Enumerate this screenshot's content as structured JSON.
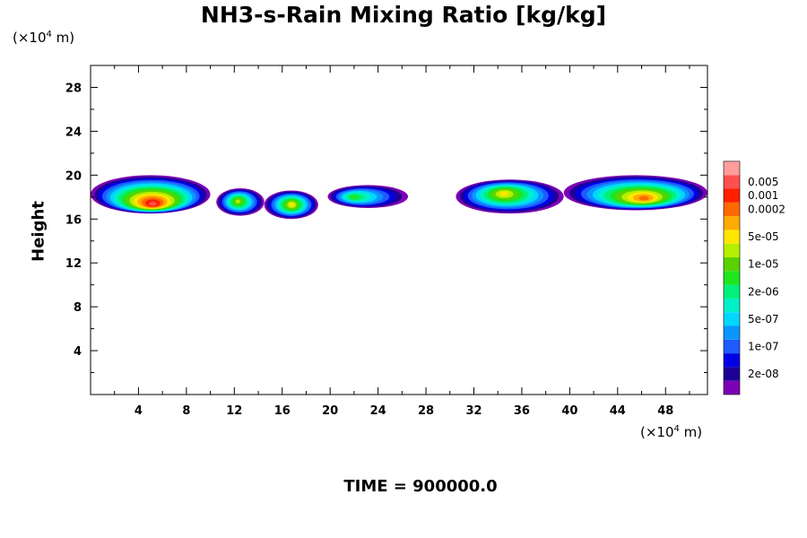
{
  "chart_data": {
    "type": "heatmap",
    "title": "NH3-s-Rain Mixing Ratio [kg/kg]",
    "ylabel": "Height",
    "y_unit": [
      "(×10",
      "4",
      " m)"
    ],
    "x_unit": [
      "(×10",
      "4",
      " m)"
    ],
    "footer": "TIME = 900000.0",
    "xlim": [
      0,
      51.5
    ],
    "ylim": [
      0,
      30
    ],
    "x_ticks": [
      4,
      8,
      12,
      16,
      20,
      24,
      28,
      32,
      36,
      40,
      44,
      48
    ],
    "y_ticks": [
      4,
      8,
      12,
      16,
      20,
      24,
      28
    ],
    "colorbar": {
      "colors": [
        "#7d00b4",
        "#1e0096",
        "#0000e6",
        "#1f5bff",
        "#0b95ff",
        "#00d7ff",
        "#00f0c8",
        "#00f07a",
        "#1ee61e",
        "#5ad200",
        "#b4f000",
        "#ffe600",
        "#ffaa00",
        "#ff6a00",
        "#ff1e00",
        "#ff5050",
        "#ff9c9c"
      ],
      "labels": [
        "2e-08",
        "1e-07",
        "5e-07",
        "2e-06",
        "1e-05",
        "5e-05",
        "0.0002",
        "0.001",
        "0.005"
      ],
      "label_band_index": [
        1,
        3,
        5,
        7,
        9,
        11,
        13,
        14,
        15
      ]
    },
    "regions": [
      {
        "x": [
          0,
          10
        ],
        "y": [
          16.5,
          20
        ],
        "peak": [
          5.2,
          17.4
        ],
        "max_level": 15
      },
      {
        "x": [
          10.5,
          14.5
        ],
        "y": [
          16.3,
          18.8
        ],
        "peak": [
          12.3,
          17.6
        ],
        "max_level": 10
      },
      {
        "x": [
          14.5,
          19
        ],
        "y": [
          16,
          18.6
        ],
        "peak": [
          16.8,
          17.3
        ],
        "max_level": 11
      },
      {
        "x": [
          19.8,
          26.5
        ],
        "y": [
          17,
          19.1
        ],
        "peak": [
          22,
          18
        ],
        "max_level": 8
      },
      {
        "x": [
          30.5,
          39.5
        ],
        "y": [
          16.5,
          19.6
        ],
        "peak": [
          34.5,
          18.3
        ],
        "max_level": 11
      },
      {
        "x": [
          39.5,
          51.5
        ],
        "y": [
          16.8,
          20
        ],
        "peak": [
          46.2,
          17.9
        ],
        "max_level": 13
      }
    ]
  }
}
